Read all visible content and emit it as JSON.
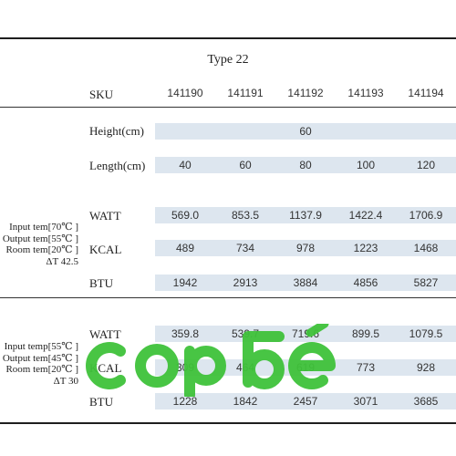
{
  "table": {
    "title": "Type 22",
    "sku_label": "SKU",
    "skus": [
      "141190",
      "141191",
      "141192",
      "141193",
      "141194"
    ],
    "height": {
      "label": "Height(cm)",
      "value": "60"
    },
    "length": {
      "label": "Length(cm)",
      "values": [
        "40",
        "60",
        "80",
        "100",
        "120"
      ]
    },
    "group1": {
      "conditions": [
        "Input tem[70℃ ]",
        "Output tem[55℃ ]",
        "Room tem[20℃ ]",
        "ΔT 42.5"
      ],
      "watt": {
        "label": "WATT",
        "values": [
          "569.0",
          "853.5",
          "1137.9",
          "1422.4",
          "1706.9"
        ]
      },
      "kcal": {
        "label": "KCAL",
        "values": [
          "489",
          "734",
          "978",
          "1223",
          "1468"
        ]
      },
      "btu": {
        "label": "BTU",
        "values": [
          "1942",
          "2913",
          "3884",
          "4856",
          "5827"
        ]
      }
    },
    "group2": {
      "conditions": [
        "Input temp[55℃ ]",
        "Output tem[45℃ ]",
        "Room tem[20℃ ]",
        "ΔT 30"
      ],
      "watt": {
        "label": "WATT",
        "values": [
          "359.8",
          "539.7",
          "719.6",
          "899.5",
          "1079.5"
        ]
      },
      "kcal": {
        "label": "KCAL",
        "values": [
          "309",
          "464",
          "619",
          "773",
          "928"
        ]
      },
      "btu": {
        "label": "BTU",
        "values": [
          "1228",
          "1842",
          "2457",
          "3071",
          "3685"
        ]
      }
    }
  },
  "watermark": {
    "text": "copbé",
    "color": "#3fc23a"
  }
}
